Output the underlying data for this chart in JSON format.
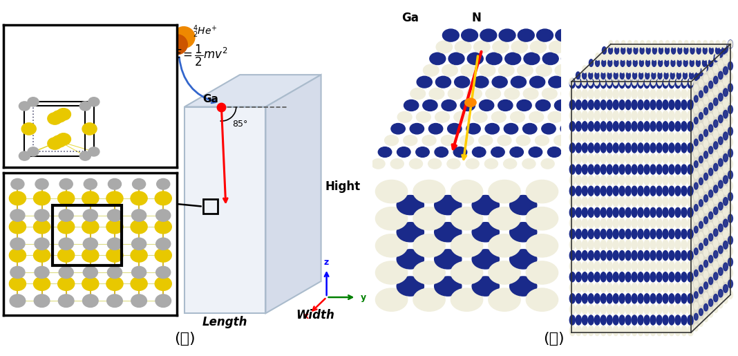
{
  "title_left": "(가)",
  "title_right": "(나)",
  "bg_color": "#ffffff",
  "box_edge_color": "#aabbcc",
  "ga_label": "Ga",
  "angle_label": "85°",
  "hight_label": "Hight",
  "length_label": "Length",
  "width_label": "Width",
  "ga_label_top": "Ga",
  "n_label_top": "N",
  "cream": "#f0eedd",
  "blue_n": "#1a2a8a",
  "yellow_ga": "#e8c800",
  "gray_n": "#aaaaaa",
  "title_fontsize": 16
}
